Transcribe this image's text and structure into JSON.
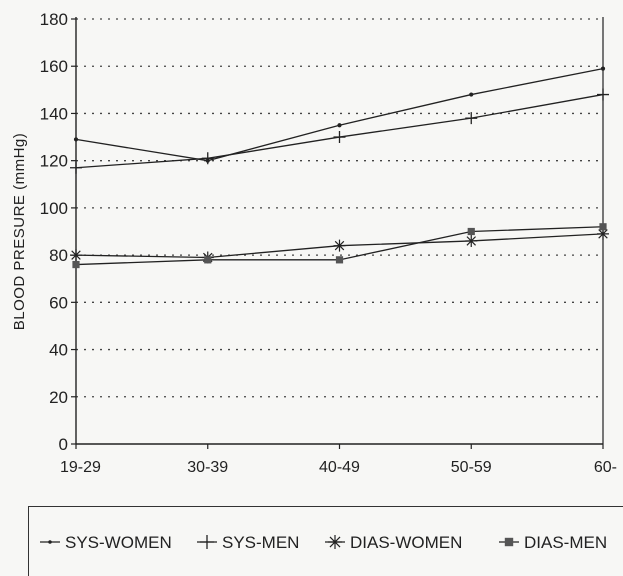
{
  "chart_data": {
    "type": "line",
    "title": "",
    "xlabel": "",
    "ylabel": "BLOOD PRESURE (mmHg)",
    "categories": [
      "19-29",
      "30-39",
      "40-49",
      "50-59",
      "60-"
    ],
    "ylim": [
      0,
      180
    ],
    "yticks": [
      0,
      20,
      40,
      60,
      80,
      100,
      120,
      140,
      160,
      180
    ],
    "grid": "horizontal-dotted",
    "legend_position": "bottom",
    "series": [
      {
        "name": "SYS-WOMEN",
        "marker": "dot",
        "values": [
          129,
          120,
          135,
          148,
          159
        ]
      },
      {
        "name": "SYS-MEN",
        "marker": "plus",
        "values": [
          117,
          121,
          130,
          138,
          148
        ]
      },
      {
        "name": "DIAS-WOMEN",
        "marker": "asterisk",
        "values": [
          80,
          79,
          84,
          86,
          89
        ]
      },
      {
        "name": "DIAS-MEN",
        "marker": "square",
        "values": [
          76,
          78,
          78,
          90,
          92
        ]
      }
    ],
    "colors": {
      "line": "#222222",
      "grid": "#444444",
      "background": "#f7f7f5"
    }
  }
}
